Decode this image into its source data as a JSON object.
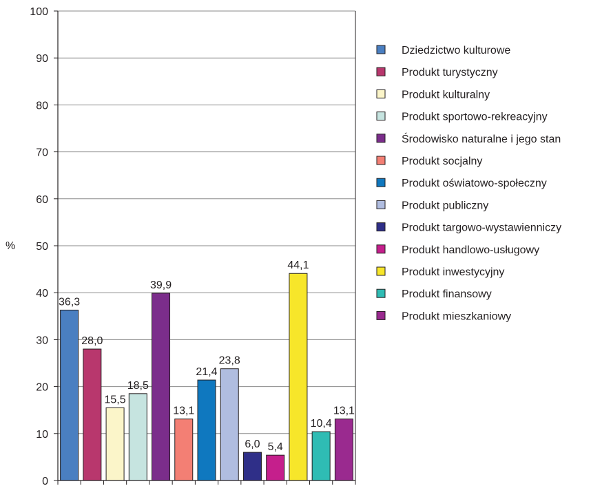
{
  "chart_data": {
    "type": "bar",
    "ylabel": "%",
    "ylim": [
      0,
      100
    ],
    "yticks": [
      0,
      10,
      20,
      30,
      40,
      50,
      60,
      70,
      80,
      90,
      100
    ],
    "grid": true,
    "legend_position": "right",
    "value_labels": [
      "36,3",
      "28,0",
      "15,5",
      "18,5",
      "39,9",
      "13,1",
      "21,4",
      "23,8",
      "6,0",
      "5,4",
      "44,1",
      "10,4",
      "13,1"
    ],
    "series": [
      {
        "name": "Dziedzictwo kulturowe",
        "value": 36.3,
        "color": "#4a7fc1"
      },
      {
        "name": "Produkt turystyczny",
        "value": 28.0,
        "color": "#b8376d"
      },
      {
        "name": "Produkt kulturalny",
        "value": 15.5,
        "color": "#fbf5c9"
      },
      {
        "name": "Produkt sportowo-rekreacyjny",
        "value": 18.5,
        "color": "#c6e4e0"
      },
      {
        "name": "Środowisko naturalne i jego stan",
        "value": 39.9,
        "color": "#7b2d8b"
      },
      {
        "name": "Produkt socjalny",
        "value": 13.1,
        "color": "#f37f74"
      },
      {
        "name": "Produkt oświatowo-społeczny",
        "value": 21.4,
        "color": "#0f78bf"
      },
      {
        "name": "Produkt publiczny",
        "value": 23.8,
        "color": "#b0bde0"
      },
      {
        "name": "Produkt targowo-wystawienniczy",
        "value": 6.0,
        "color": "#2f2f88"
      },
      {
        "name": "Produkt handlowo-usługowy",
        "value": 5.4,
        "color": "#c51f8c"
      },
      {
        "name": "Produkt inwestycyjny",
        "value": 44.1,
        "color": "#f7e62a"
      },
      {
        "name": "Produkt finansowy",
        "value": 10.4,
        "color": "#2fbcb4"
      },
      {
        "name": "Produkt mieszkaniowy",
        "value": 13.1,
        "color": "#9a2a8f"
      }
    ]
  }
}
